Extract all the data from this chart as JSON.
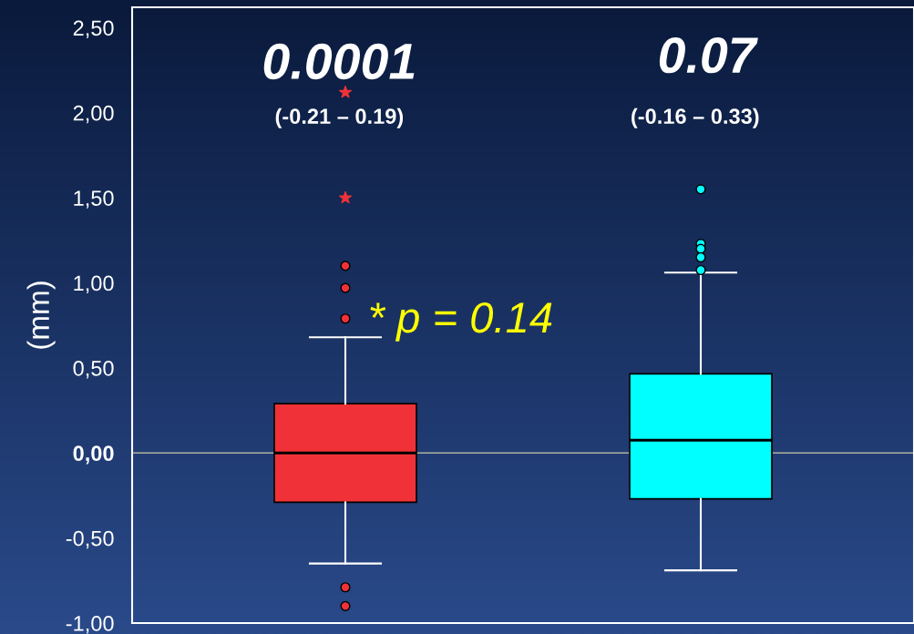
{
  "chart_data": {
    "type": "box",
    "categories": [
      null,
      null
    ],
    "ylabel": "(mm)",
    "series": [
      {
        "colors": [
          "#f03238",
          "#00ffff"
        ],
        "boxes": [
          {
            "low": -0.65,
            "q1": -0.29,
            "median": 0.0,
            "q3": 0.29,
            "high": 0.68,
            "outliers": [
              1.1,
              0.97,
              0.79,
              -0.79,
              -0.9
            ]
          },
          {
            "low": -0.69,
            "q1": -0.27,
            "median": 0.075,
            "q3": 0.465,
            "high": 1.06,
            "outliers": [
              1.55,
              1.23,
              1.2,
              1.15,
              1.075
            ]
          }
        ]
      },
      {
        "type": "scatter",
        "marker": "star",
        "color": "#f03238",
        "values": [
          2.12,
          null
        ]
      },
      {
        "type": "scatter",
        "marker": "star",
        "color": "#f03238",
        "values": [
          1.5,
          null
        ]
      }
    ],
    "ylim": [
      -1.0,
      2.62
    ],
    "yticks": [
      {
        "value": -1.0,
        "label": "-1,00"
      },
      {
        "value": -0.5,
        "label": "-0,50"
      },
      {
        "value": 0.0,
        "label": "0,00"
      },
      {
        "value": 0.5,
        "label": "0,50"
      },
      {
        "value": 1.0,
        "label": "1,00"
      },
      {
        "value": 1.5,
        "label": "1,50"
      },
      {
        "value": 2.0,
        "label": "2,00"
      },
      {
        "value": 2.5,
        "label": "2,50"
      }
    ],
    "ref_lines": [
      {
        "axis": "y",
        "value": 0.0,
        "color": "#b0b0a0"
      }
    ],
    "annotations": [
      "0.0001",
      "(-0.21 – 0.19)",
      "0.07",
      "(-0.16 – 0.33)",
      "* p = 0.14"
    ],
    "grid": false,
    "legend": false
  }
}
